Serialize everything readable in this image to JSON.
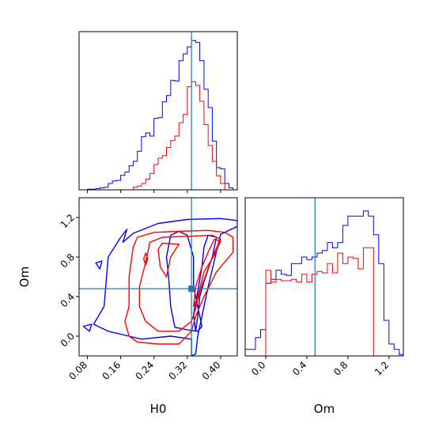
{
  "chart_data": {
    "type": "corner",
    "parameters": [
      "H0",
      "Om"
    ],
    "truth": {
      "H0": 0.33,
      "Om": 0.48
    },
    "colors": {
      "series_a": "#0000ff",
      "series_b": "#ff0000",
      "truth_line": "#1f77b4"
    },
    "panels": [
      {
        "type": "histogram",
        "parameter": "H0",
        "xlim": [
          0.06,
          0.44
        ],
        "ylim": [
          0,
          0.25
        ],
        "ticks": [
          0.08,
          0.16,
          0.24,
          0.32,
          0.4
        ],
        "tick_labels_shown": false,
        "bin_edges": [
          0.06,
          0.07,
          0.08,
          0.09,
          0.1,
          0.11,
          0.12,
          0.13,
          0.14,
          0.15,
          0.16,
          0.17,
          0.18,
          0.19,
          0.2,
          0.21,
          0.22,
          0.23,
          0.24,
          0.25,
          0.26,
          0.27,
          0.28,
          0.29,
          0.3,
          0.31,
          0.32,
          0.33,
          0.34,
          0.35,
          0.36,
          0.37,
          0.38,
          0.39,
          0.4,
          0.41,
          0.42,
          0.43,
          0.44
        ],
        "series": [
          {
            "color_key": "series_a",
            "counts": [
              0,
              0,
              0.001,
              0.001,
              0.002,
              0.003,
              0.004,
              0.01,
              0.014,
              0.015,
              0.023,
              0.028,
              0.038,
              0.045,
              0.061,
              0.084,
              0.09,
              0.085,
              0.113,
              0.114,
              0.139,
              0.149,
              0.173,
              0.172,
              0.204,
              0.215,
              0.226,
              0.236,
              0.233,
              0.204,
              0.159,
              0.13,
              0.077,
              0.035,
              0.033,
              0.01,
              0.003,
              0
            ]
          },
          {
            "color_key": "series_b",
            "counts": [
              0,
              0,
              0,
              0,
              0,
              0,
              0,
              0,
              0,
              0,
              0,
              0,
              0,
              0.004,
              0.006,
              0.01,
              0.017,
              0.026,
              0.04,
              0.05,
              0.054,
              0.067,
              0.078,
              0.085,
              0.106,
              0.119,
              0.163,
              0.171,
              0.165,
              0.14,
              0.103,
              0.07,
              0.045,
              0.022,
              0.01,
              0,
              0,
              0
            ]
          }
        ]
      },
      {
        "type": "contour",
        "x_parameter": "H0",
        "y_parameter": "Om",
        "xlim": [
          0.06,
          0.44
        ],
        "ylim": [
          -0.2,
          1.4
        ],
        "xticks": [
          0.08,
          0.16,
          0.24,
          0.32,
          0.4
        ],
        "xtick_labels": [
          "0.08",
          "0.16",
          "0.24",
          "0.32",
          "0.40"
        ],
        "yticks": [
          0.0,
          0.4,
          0.8,
          1.2
        ],
        "ytick_labels": [
          "0.0",
          "0.4",
          "0.8",
          "1.2"
        ],
        "xlabel": "H0",
        "ylabel": "Om",
        "contours": [
          {
            "color_key": "series_a",
            "points": [
              [
                0.095,
                0.12
              ],
              [
                0.12,
                0.3
              ],
              [
                0.13,
                0.8
              ],
              [
                0.16,
                1.0
              ],
              [
                0.175,
                1.08
              ],
              [
                0.165,
                0.95
              ],
              [
                0.19,
                1.04
              ],
              [
                0.25,
                1.14
              ],
              [
                0.32,
                1.18
              ],
              [
                0.4,
                1.19
              ],
              [
                0.44,
                1.17
              ],
              [
                0.44,
                1.11
              ],
              [
                0.4,
                1.03
              ],
              [
                0.37,
                0.5
              ],
              [
                0.355,
                0.2
              ],
              [
                0.345,
                0.0
              ],
              [
                0.34,
                -0.18
              ],
              [
                0.33,
                -0.2
              ],
              [
                0.33,
                -0.03
              ],
              [
                0.28,
                0.0
              ],
              [
                0.21,
                -0.03
              ],
              [
                0.16,
                0.02
              ],
              [
                0.13,
                0.05
              ],
              [
                0.095,
                0.12
              ]
            ]
          },
          {
            "color_key": "series_a",
            "points": [
              [
                0.3,
                1.06
              ],
              [
                0.32,
                1.02
              ],
              [
                0.335,
                0.8
              ],
              [
                0.335,
                0.5
              ],
              [
                0.345,
                0.3
              ],
              [
                0.355,
                0.1
              ],
              [
                0.345,
                0.05
              ],
              [
                0.325,
                0.06
              ],
              [
                0.29,
                0.09
              ],
              [
                0.28,
                0.3
              ],
              [
                0.275,
                0.6
              ],
              [
                0.27,
                0.8
              ],
              [
                0.28,
                1.02
              ],
              [
                0.3,
                1.06
              ]
            ]
          },
          {
            "color_key": "series_a",
            "points": [
              [
                0.37,
                1.02
              ],
              [
                0.39,
                1.0
              ],
              [
                0.38,
                0.8
              ],
              [
                0.36,
                0.55
              ],
              [
                0.35,
                0.4
              ],
              [
                0.345,
                0.2
              ],
              [
                0.34,
                0.05
              ],
              [
                0.335,
                0.22
              ],
              [
                0.345,
                0.45
              ],
              [
                0.355,
                0.7
              ],
              [
                0.36,
                0.9
              ],
              [
                0.37,
                1.02
              ]
            ]
          },
          {
            "color_key": "series_a",
            "points": [
              [
                0.07,
                0.1
              ],
              [
                0.09,
                0.12
              ],
              [
                0.085,
                0.05
              ],
              [
                0.07,
                0.1
              ]
            ]
          },
          {
            "color_key": "series_a",
            "points": [
              [
                0.1,
                0.74
              ],
              [
                0.115,
                0.76
              ],
              [
                0.11,
                0.68
              ],
              [
                0.1,
                0.74
              ]
            ]
          },
          {
            "color_key": "series_b",
            "points": [
              [
                0.18,
                0.6
              ],
              [
                0.19,
                0.9
              ],
              [
                0.2,
                1.0
              ],
              [
                0.24,
                1.05
              ],
              [
                0.3,
                1.06
              ],
              [
                0.37,
                1.07
              ],
              [
                0.41,
                1.05
              ],
              [
                0.43,
                1.0
              ],
              [
                0.43,
                0.85
              ],
              [
                0.39,
                0.65
              ],
              [
                0.36,
                0.4
              ],
              [
                0.34,
                0.2
              ],
              [
                0.33,
                0.05
              ],
              [
                0.3,
                -0.08
              ],
              [
                0.25,
                -0.08
              ],
              [
                0.2,
                -0.06
              ],
              [
                0.18,
                0.0
              ],
              [
                0.17,
                0.15
              ],
              [
                0.18,
                0.3
              ],
              [
                0.18,
                0.6
              ]
            ]
          },
          {
            "color_key": "series_b",
            "points": [
              [
                0.22,
                0.75
              ],
              [
                0.23,
                0.95
              ],
              [
                0.26,
                1.0
              ],
              [
                0.32,
                1.01
              ],
              [
                0.38,
                1.02
              ],
              [
                0.4,
                0.98
              ],
              [
                0.38,
                0.8
              ],
              [
                0.35,
                0.45
              ],
              [
                0.34,
                0.28
              ],
              [
                0.33,
                0.15
              ],
              [
                0.3,
                0.05
              ],
              [
                0.25,
                0.05
              ],
              [
                0.22,
                0.15
              ],
              [
                0.205,
                0.3
              ],
              [
                0.205,
                0.5
              ],
              [
                0.22,
                0.75
              ]
            ]
          },
          {
            "color_key": "series_b",
            "points": [
              [
                0.25,
                0.88
              ],
              [
                0.26,
                0.94
              ],
              [
                0.3,
                0.93
              ],
              [
                0.28,
                0.8
              ],
              [
                0.27,
                0.6
              ],
              [
                0.255,
                0.7
              ],
              [
                0.25,
                0.88
              ]
            ]
          },
          {
            "color_key": "series_b",
            "points": [
              [
                0.385,
                0.98
              ],
              [
                0.4,
                0.96
              ],
              [
                0.385,
                0.82
              ],
              [
                0.36,
                0.65
              ],
              [
                0.345,
                0.4
              ],
              [
                0.335,
                0.3
              ],
              [
                0.34,
                0.5
              ],
              [
                0.355,
                0.7
              ],
              [
                0.37,
                0.85
              ],
              [
                0.385,
                0.98
              ]
            ]
          },
          {
            "color_key": "series_b",
            "points": [
              [
                0.215,
                0.78
              ],
              [
                0.22,
                0.84
              ],
              [
                0.225,
                0.78
              ],
              [
                0.22,
                0.72
              ],
              [
                0.215,
                0.78
              ]
            ]
          }
        ]
      },
      {
        "type": "histogram",
        "parameter": "Om",
        "xlim": [
          -0.2,
          1.34
        ],
        "ylim": [
          0,
          1.2
        ],
        "xticks": [
          0.0,
          0.4,
          0.8,
          1.2
        ],
        "xtick_labels": [
          "0.0",
          "0.4",
          "0.8",
          "1.2"
        ],
        "xlabel": "Om",
        "bin_edges": [
          -0.2,
          -0.15,
          -0.1,
          -0.05,
          0.0,
          0.05,
          0.1,
          0.15,
          0.2,
          0.25,
          0.3,
          0.35,
          0.4,
          0.45,
          0.5,
          0.55,
          0.6,
          0.65,
          0.7,
          0.75,
          0.8,
          0.85,
          0.9,
          0.95,
          1.0,
          1.05,
          1.1,
          1.15,
          1.2,
          1.25,
          1.3,
          1.35
        ],
        "series": [
          {
            "color_key": "series_a",
            "counts": [
              0.05,
              0.05,
              0.14,
              0.2,
              0.55,
              0.58,
              0.65,
              0.62,
              0.61,
              0.7,
              0.7,
              0.75,
              0.73,
              0.75,
              0.78,
              0.8,
              0.86,
              0.82,
              0.86,
              0.99,
              1.06,
              1.06,
              1.06,
              1.1,
              1.06,
              0.92,
              0.7,
              0.27,
              0.09,
              0.05,
              0.01
            ]
          },
          {
            "color_key": "series_b",
            "counts": [
              0,
              0,
              0,
              0,
              0.65,
              0.56,
              0.58,
              0.57,
              0.57,
              0.58,
              0.56,
              0.62,
              0.56,
              0.62,
              0.64,
              0.63,
              0.7,
              0.63,
              0.78,
              0.7,
              0.75,
              0.74,
              0.66,
              0.82,
              0.82,
              0,
              0,
              0,
              0,
              0,
              0
            ]
          }
        ]
      }
    ]
  }
}
